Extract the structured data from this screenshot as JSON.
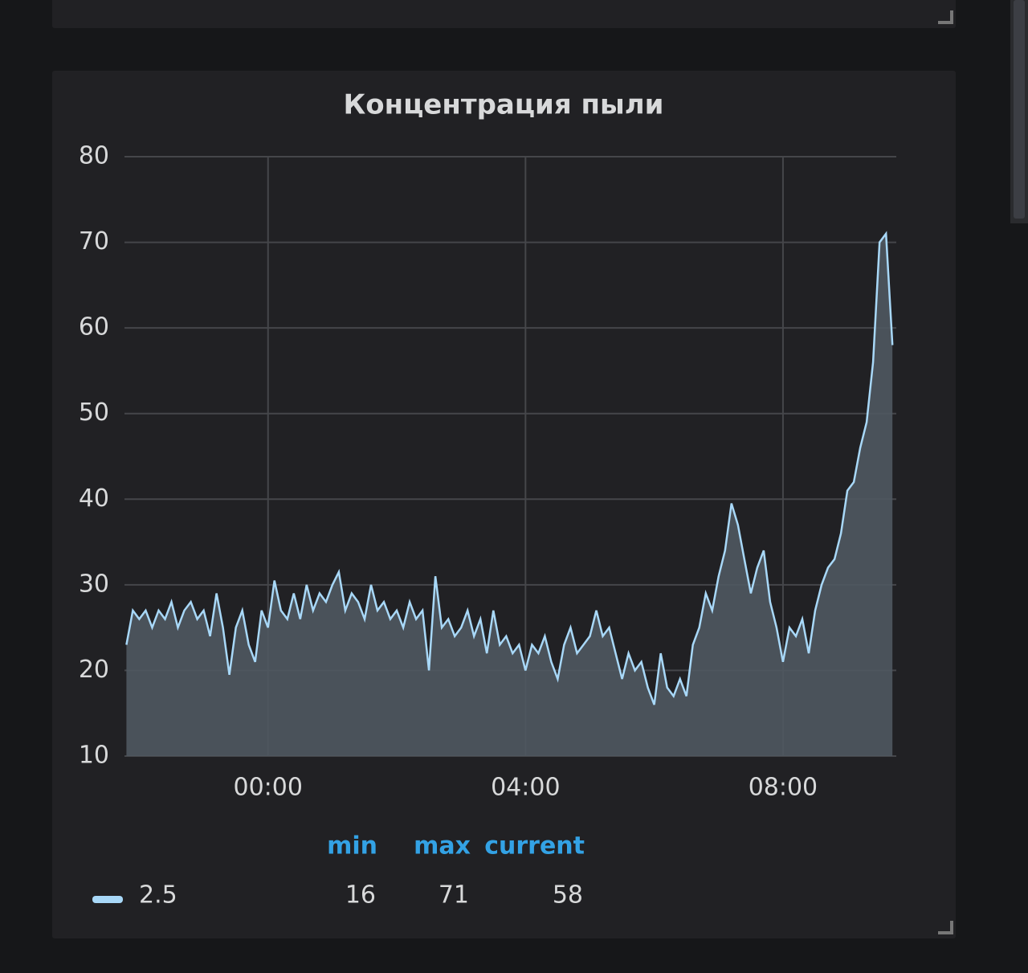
{
  "chart_data": {
    "type": "line",
    "title": "Концентрация пыли",
    "x": [
      -2.2,
      -2.1,
      -2.0,
      -1.9,
      -1.8,
      -1.7,
      -1.6,
      -1.5,
      -1.4,
      -1.3,
      -1.2,
      -1.1,
      -1.0,
      -0.9,
      -0.8,
      -0.7,
      -0.6,
      -0.5,
      -0.4,
      -0.3,
      -0.2,
      -0.1,
      0.0,
      0.1,
      0.2,
      0.3,
      0.4,
      0.5,
      0.6,
      0.7,
      0.8,
      0.9,
      1.0,
      1.1,
      1.2,
      1.3,
      1.4,
      1.5,
      1.6,
      1.7,
      1.8,
      1.9,
      2.0,
      2.1,
      2.2,
      2.3,
      2.4,
      2.5,
      2.6,
      2.7,
      2.8,
      2.9,
      3.0,
      3.1,
      3.2,
      3.3,
      3.4,
      3.5,
      3.6,
      3.7,
      3.8,
      3.9,
      4.0,
      4.1,
      4.2,
      4.3,
      4.4,
      4.5,
      4.6,
      4.7,
      4.8,
      4.9,
      5.0,
      5.1,
      5.2,
      5.3,
      5.4,
      5.5,
      5.6,
      5.7,
      5.8,
      5.9,
      6.0,
      6.1,
      6.2,
      6.3,
      6.4,
      6.5,
      6.6,
      6.7,
      6.8,
      6.9,
      7.0,
      7.1,
      7.2,
      7.3,
      7.4,
      7.5,
      7.6,
      7.7,
      7.8,
      7.9,
      8.0,
      8.1,
      8.2,
      8.3,
      8.4,
      8.5,
      8.6,
      8.7,
      8.8,
      8.9,
      9.0,
      9.1,
      9.2,
      9.3,
      9.4,
      9.5,
      9.6,
      9.7
    ],
    "series": [
      {
        "name": "2.5",
        "color": "#a8d8f8",
        "fill": "#4f5861",
        "values": [
          23,
          27,
          26,
          27,
          25,
          27,
          26,
          28,
          25,
          27,
          28,
          26,
          27,
          24,
          29,
          25,
          19.5,
          25,
          27,
          23,
          21,
          27,
          25,
          30.5,
          27,
          26,
          29,
          26,
          30,
          27,
          29,
          28,
          30,
          31.5,
          27,
          29,
          28,
          26,
          30,
          27,
          28,
          26,
          27,
          25,
          28,
          26,
          27,
          20,
          31,
          25,
          26,
          24,
          25,
          27,
          24,
          26,
          22,
          27,
          23,
          24,
          22,
          23,
          20,
          23,
          22,
          24,
          21,
          19,
          23,
          25,
          22,
          23,
          24,
          27,
          24,
          25,
          22,
          19,
          22,
          20,
          21,
          18,
          16,
          22,
          18,
          17,
          19,
          17,
          23,
          25,
          29,
          27,
          31,
          34,
          39.5,
          37,
          33,
          29,
          32,
          34,
          28,
          25,
          21,
          25,
          24,
          26,
          22,
          27,
          30,
          32,
          33,
          36,
          41,
          42,
          46,
          49,
          56,
          70,
          71,
          58
        ]
      }
    ],
    "xlim": [
      -2.23,
      9.76
    ],
    "xticks": [
      {
        "value": 0,
        "label": "00:00"
      },
      {
        "value": 4,
        "label": "04:00"
      },
      {
        "value": 8,
        "label": "08:00"
      }
    ],
    "ylim": [
      10,
      80
    ],
    "yticks": [
      10,
      20,
      30,
      40,
      50,
      60,
      70,
      80
    ],
    "grid": true,
    "legend_stats": {
      "columns": [
        "min",
        "max",
        "current"
      ],
      "values": [
        16,
        71,
        58
      ]
    }
  }
}
